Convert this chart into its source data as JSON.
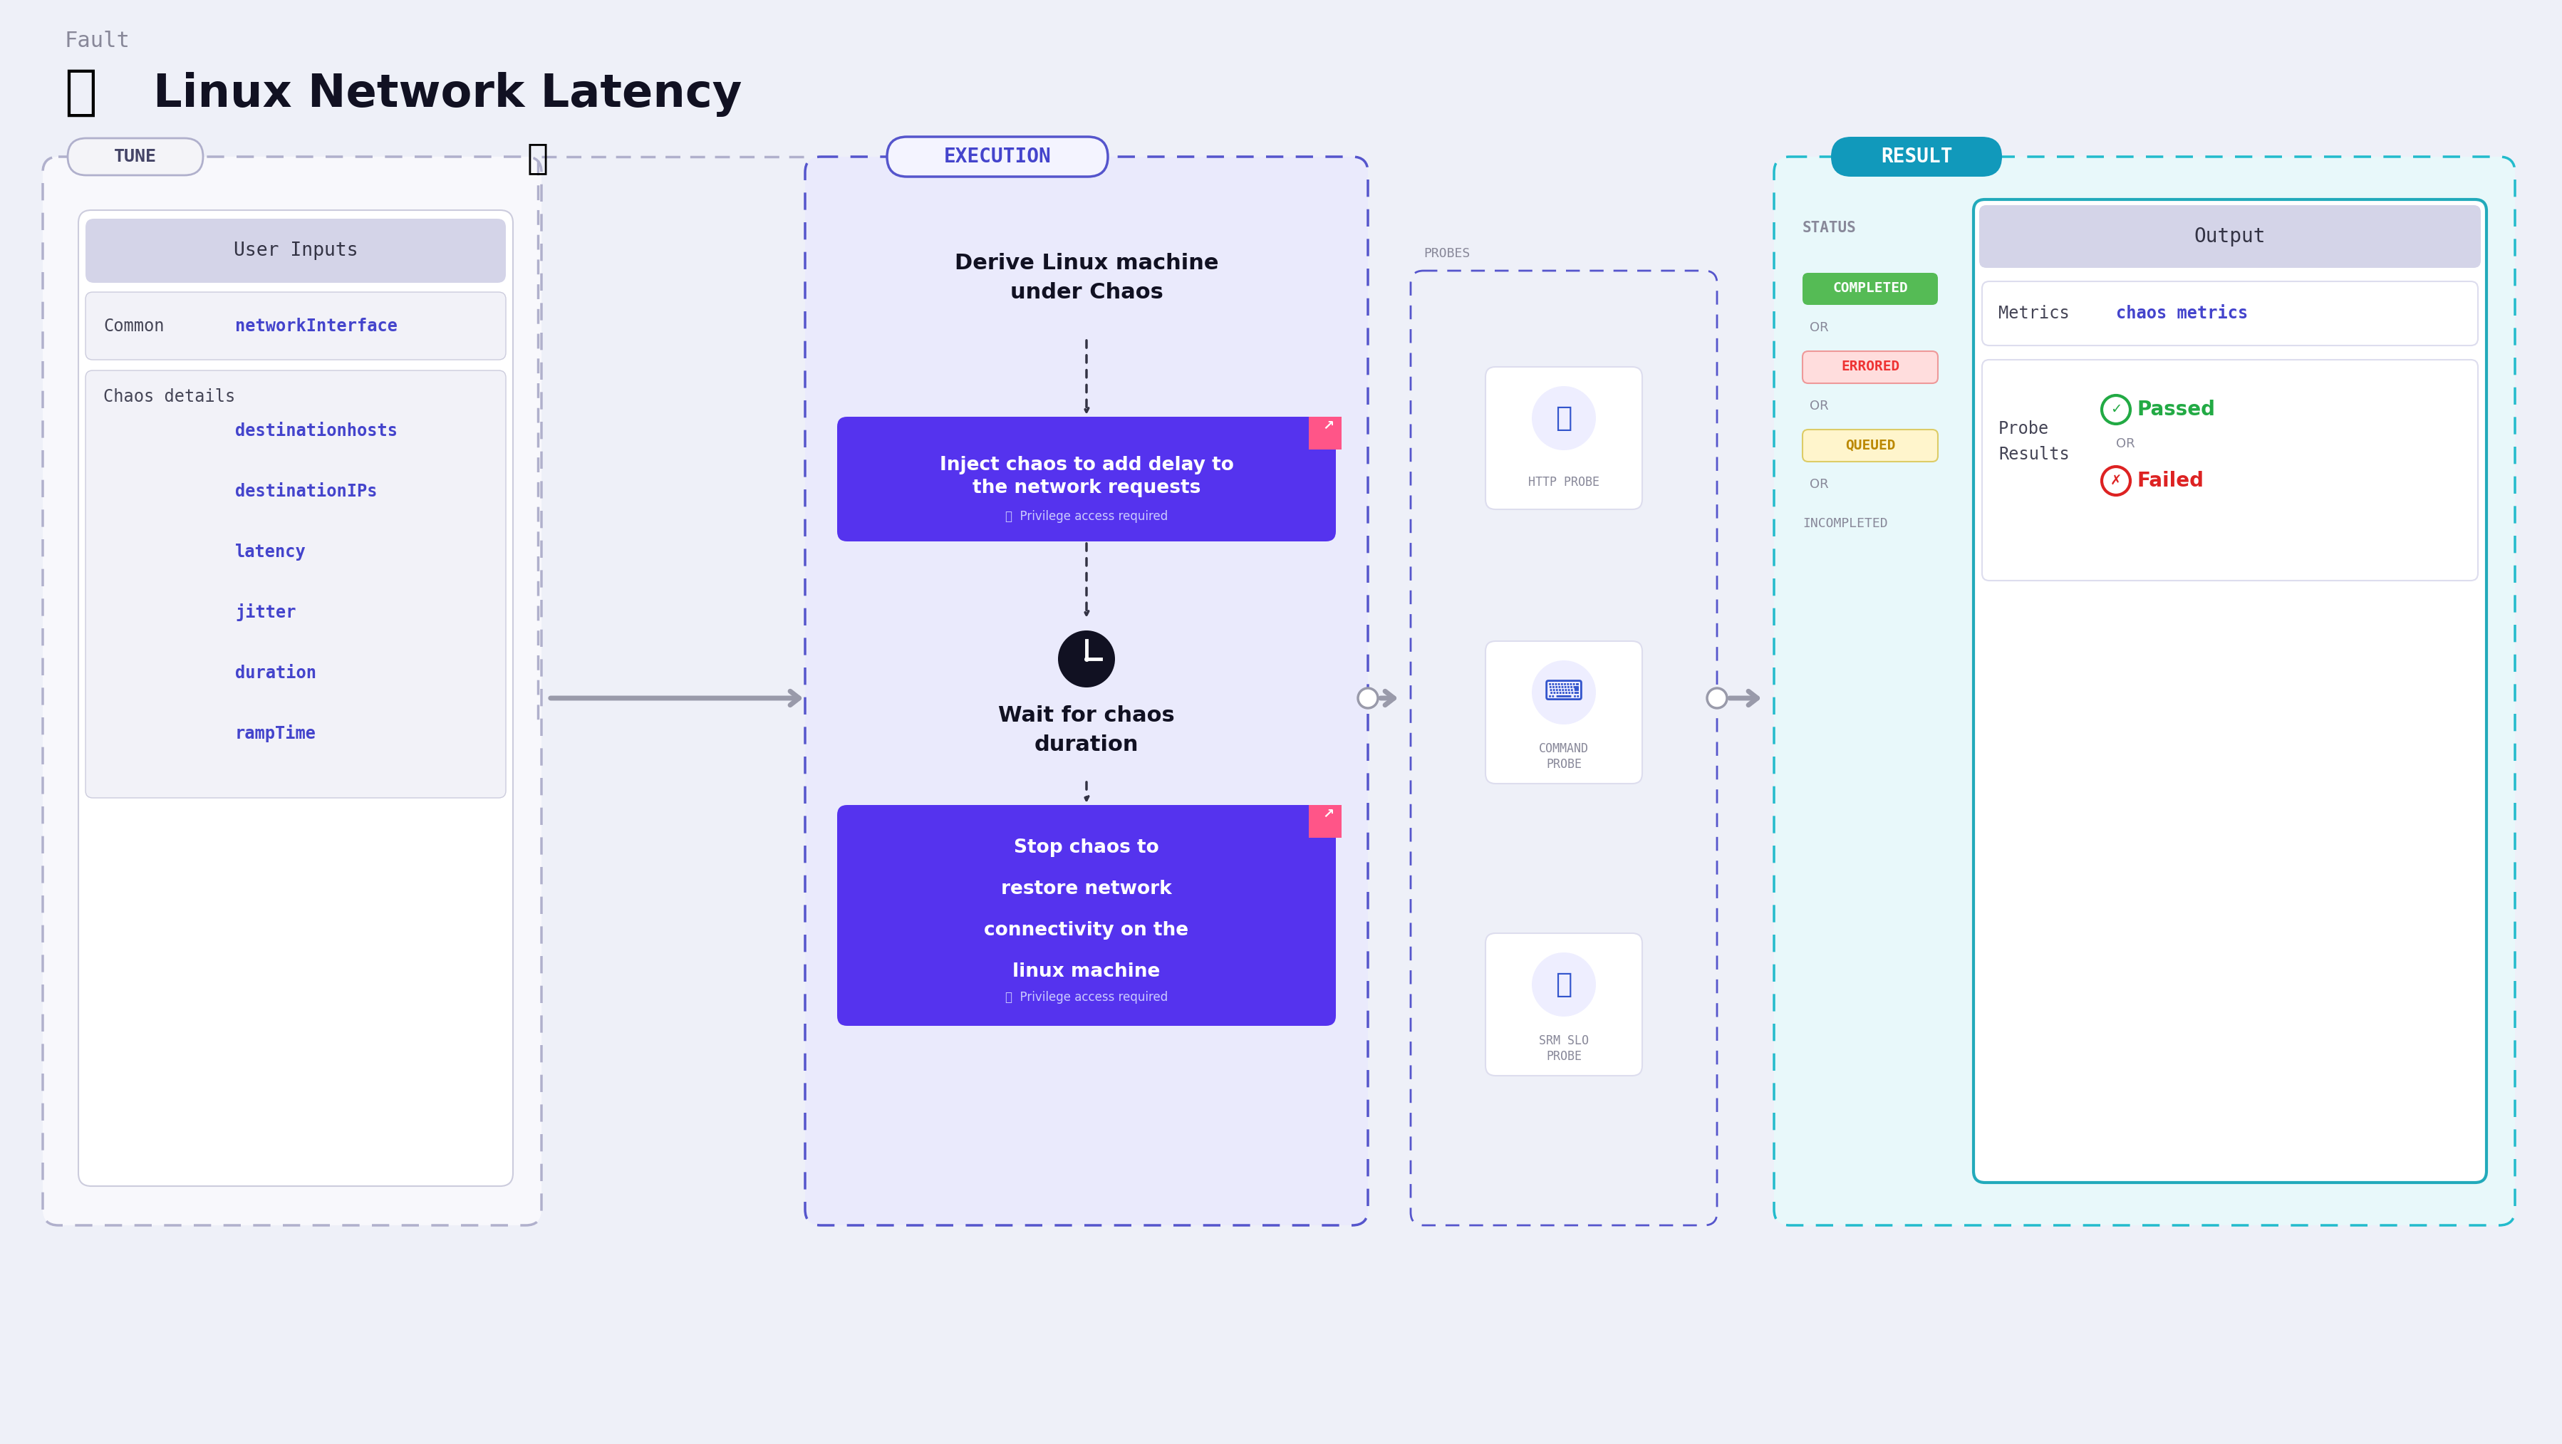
{
  "bg_color": "#eef0f8",
  "title_fault": "Fault",
  "title_main": "Linux Network Latency",
  "tune_label": "TUNE",
  "execution_label": "EXECUTION",
  "result_label": "RESULT",
  "probes_label": "PROBES",
  "user_inputs_title": "User Inputs",
  "common_label": "Common",
  "common_value": "networkInterface",
  "chaos_label": "Chaos details",
  "chaos_values": [
    "destinationhosts",
    "destinationIPs",
    "latency",
    "jitter",
    "duration",
    "rampTime"
  ],
  "exec_step1": "Derive Linux machine\nunder Chaos",
  "exec_step2_line1": "Inject chaos to add delay to",
  "exec_step2_line2": "the network requests",
  "exec_step2_sub": "Privilege access required",
  "exec_step3": "Wait for chaos\nduration",
  "exec_step4_line1": "Stop chaos to",
  "exec_step4_line2": "restore network",
  "exec_step4_line3": "connectivity on the",
  "exec_step4_line4": "linux machine",
  "exec_step4_sub": "Privilege access required",
  "probe1_label": "HTTP PROBE",
  "probe2_label": "COMMAND\nPROBE",
  "probe3_label": "SRM SLO\nPROBE",
  "status_label": "STATUS",
  "status_completed": "COMPLETED",
  "status_errored": "ERRORED",
  "status_queued": "QUEUED",
  "status_incompleted": "INCOMPLETED",
  "output_title": "Output",
  "metrics_label": "Metrics",
  "metrics_value": "chaos metrics",
  "probe_results_label": "Probe\nResults",
  "passed_label": "Passed",
  "failed_label": "Failed",
  "or_text": "OR",
  "color_bg": "#eef0f8",
  "color_tune_border": "#b0b0cc",
  "color_tune_pill_bg": "#f4f4f8",
  "color_tune_pill_border": "#b0b0cc",
  "color_tune_pill_text": "#444466",
  "color_execution_border": "#5555cc",
  "color_execution_bg": "#eaeafc",
  "color_execution_pill_bg": "#f4f4ff",
  "color_execution_pill_border": "#5555cc",
  "color_execution_pill_text": "#4444cc",
  "color_result_border": "#22bbcc",
  "color_result_bg": "#e8f8fa",
  "color_result_btn_bg": "#1199bb",
  "color_probes_border": "#5555cc",
  "color_blue_link": "#4444cc",
  "color_inner_box_bg": "#f2f2f8",
  "color_inner_box_border": "#ccccdd",
  "color_user_inputs_bg": "#d4d4e8",
  "color_purple_btn": "#5533ee",
  "color_completed_bg": "#55bb55",
  "color_completed_text": "#ffffff",
  "color_errored_bg": "#ffdddd",
  "color_errored_text": "#ee3333",
  "color_errored_border": "#ee9999",
  "color_queued_bg": "#fff5cc",
  "color_queued_text": "#bb8800",
  "color_queued_border": "#ddcc66",
  "color_output_border": "#22aabb",
  "color_output_bg": "#ffffff",
  "color_output_header_bg": "#d4d4e8",
  "color_green": "#22aa44",
  "color_red": "#dd2222",
  "color_gray_text": "#888899",
  "color_dark_text": "#222233",
  "color_medium_text": "#555566",
  "color_arrow": "#999aaa",
  "color_dashed_arrow": "#444455",
  "color_pink_tag": "#ff5588"
}
